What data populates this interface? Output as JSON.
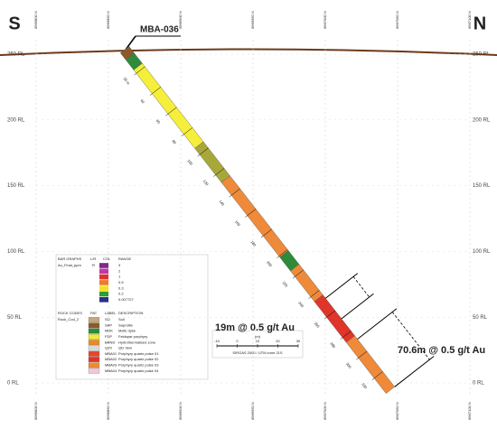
{
  "header": {
    "left": "S",
    "right": "N",
    "hole_id": "MBA-036"
  },
  "northings": [
    "8966800 N",
    "8966850 N",
    "8966900 N",
    "8966950 N",
    "8967000 N",
    "8967050 N",
    "8967100 N"
  ],
  "rl_labels": [
    "250 RL",
    "200 RL",
    "150 RL",
    "100 RL",
    "50 RL",
    "0 RL"
  ],
  "depth_labels": [
    "20 m",
    "40",
    "60",
    "80",
    "100",
    "120",
    "140",
    "160",
    "180",
    "200",
    "220",
    "240",
    "260",
    "280",
    "300",
    "320"
  ],
  "intercepts": [
    "19m @ 0.5 g/t Au",
    "70.6m @ 0.5 g/t Au"
  ],
  "legend": {
    "bar_graphs": {
      "title": "BAR GRAPHS",
      "headers": [
        "L/R",
        "COL",
        "RANGE"
      ],
      "field": "Au_Final_ppm",
      "side": "R",
      "ranges": [
        "3",
        "2",
        "1",
        "0.5",
        "0.3",
        "0.2",
        "0.007727"
      ]
    },
    "rock_codes": {
      "title": "ROCK CODES",
      "headers": [
        "PAT",
        "LABEL",
        "DESCRIPTION"
      ],
      "field": "Rock_Cod_2",
      "rows": [
        [
          "SO",
          "Soil"
        ],
        [
          "SAP",
          "Saprolite"
        ],
        [
          "MDK",
          "Mafic dyke"
        ],
        [
          "FDP",
          "Feldspar porphyry"
        ],
        [
          "BRND",
          "Hydrothermalised zone"
        ],
        [
          "QZV",
          "Qtz Vein"
        ],
        [
          "MBA01",
          "Porphyry quartz pulse 01"
        ],
        [
          "MBA02",
          "Porphyry quartz pulse 02"
        ],
        [
          "MBA03",
          "Porphyry quartz pulse 03"
        ],
        [
          "MBA04",
          "Porphyry quartz pulse 04"
        ]
      ]
    }
  },
  "scale": {
    "labels": [
      "-10",
      "0",
      "10",
      "20",
      "30"
    ],
    "unit": "(m)",
    "crs": "SIRGAS 2000 / UTM zone 21S"
  }
}
